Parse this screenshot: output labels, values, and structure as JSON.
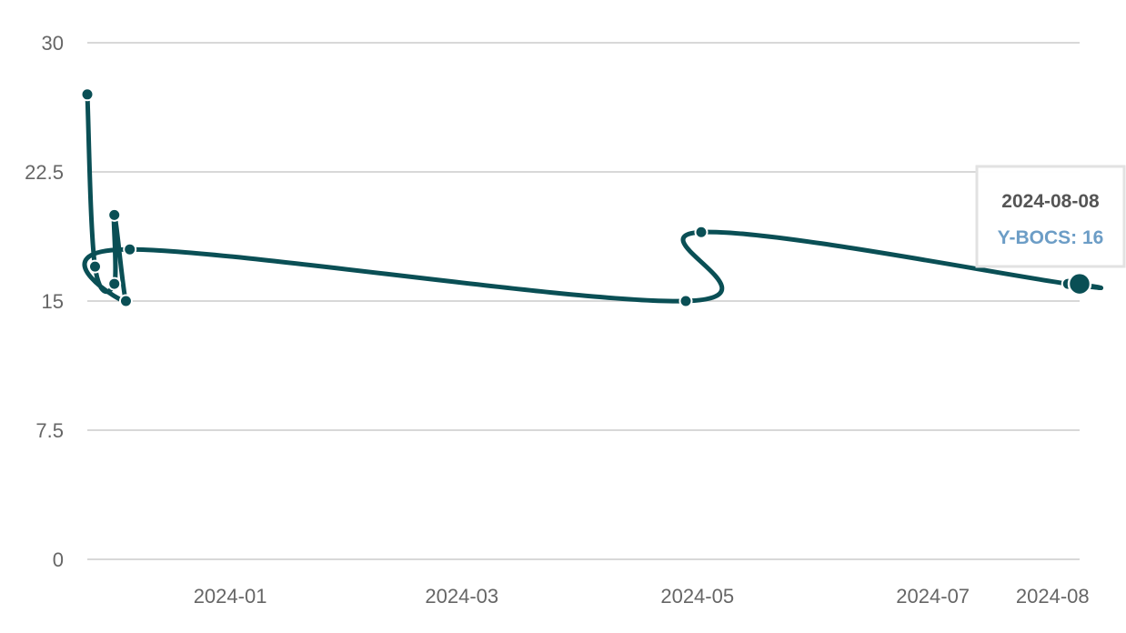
{
  "chart_data": {
    "type": "line",
    "ylim": [
      0,
      30
    ],
    "yticks": [
      "0",
      "7.5",
      "15",
      "22.5",
      "30"
    ],
    "xticks": [
      "2024-01",
      "2024-03",
      "2024-05",
      "2024-07",
      "2024-08"
    ],
    "grid": true,
    "series": [
      {
        "color": "#0a4f55",
        "points": [
          {
            "x": "2023-11-25",
            "y": 27
          },
          {
            "x": "2023-11-27",
            "y": 17
          },
          {
            "x": "2023-12-02",
            "y": 16
          },
          {
            "x": "2023-12-02",
            "y": 20
          },
          {
            "x": "2023-12-05",
            "y": 15
          },
          {
            "x": "2023-12-06",
            "y": 18
          },
          {
            "x": "2024-04-28",
            "y": 15
          },
          {
            "x": "2024-05-02",
            "y": 19
          },
          {
            "x": "2024-08-05",
            "y": 16
          },
          {
            "x": "2024-08-08",
            "y": 16
          }
        ]
      }
    ],
    "tooltip": {
      "date": "2024-08-08",
      "label": "Y-BOCS: 16"
    }
  }
}
